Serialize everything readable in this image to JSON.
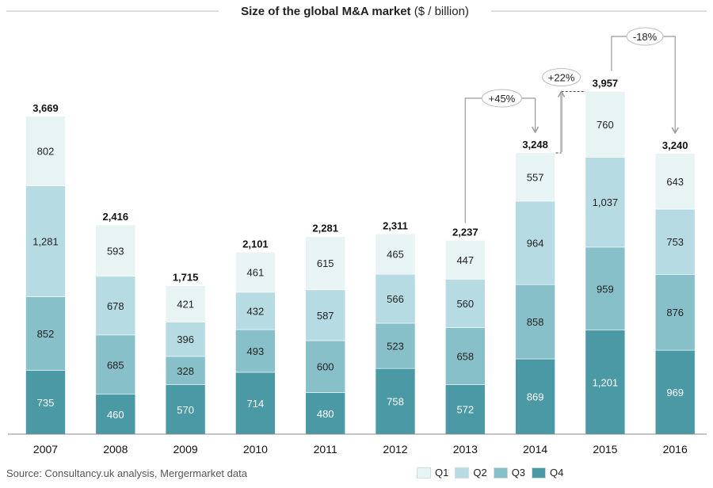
{
  "chart_data": {
    "type": "bar",
    "stacked": true,
    "title_main": "Size of the global M&A market",
    "title_unit": " ($ / billion)",
    "categories": [
      "2007",
      "2008",
      "2009",
      "2010",
      "2011",
      "2012",
      "2013",
      "2014",
      "2015",
      "2016"
    ],
    "series": [
      {
        "name": "Q4",
        "color": "#4a99a5",
        "text_color": "#ffffff",
        "values": [
          735,
          460,
          570,
          714,
          480,
          758,
          572,
          869,
          1201,
          969
        ]
      },
      {
        "name": "Q3",
        "color": "#88c0ca",
        "text_color": "#222222",
        "values": [
          852,
          685,
          328,
          493,
          600,
          523,
          658,
          858,
          959,
          876
        ]
      },
      {
        "name": "Q2",
        "color": "#b7dbe2",
        "text_color": "#222222",
        "values": [
          1281,
          678,
          396,
          432,
          587,
          566,
          560,
          964,
          1037,
          753
        ]
      },
      {
        "name": "Q1",
        "color": "#e8f3f4",
        "text_color": "#222222",
        "values": [
          802,
          593,
          421,
          461,
          615,
          465,
          447,
          557,
          760,
          643
        ]
      }
    ],
    "series_labels": [
      [
        "735",
        "460",
        "570",
        "714",
        "480",
        "758",
        "572",
        "869",
        "1,201",
        "969"
      ],
      [
        "852",
        "685",
        "328",
        "493",
        "600",
        "523",
        "658",
        "858",
        "959",
        "876"
      ],
      [
        "1,281",
        "678",
        "396",
        "432",
        "587",
        "566",
        "560",
        "964",
        "1,037",
        "753"
      ],
      [
        "802",
        "593",
        "421",
        "461",
        "615",
        "465",
        "447",
        "557",
        "760",
        "643"
      ]
    ],
    "totals": [
      "3,669",
      "2,416",
      "1,715",
      "2,101",
      "2,281",
      "2,311",
      "2,237",
      "3,248",
      "3,957",
      "3,240"
    ],
    "total_values": [
      3669,
      2416,
      1715,
      2101,
      2281,
      2311,
      2237,
      3248,
      3957,
      3240
    ],
    "ylim": [
      0,
      4300
    ],
    "legend_position": "bottom-right",
    "annotations": [
      {
        "text": "+45%",
        "from": "2013",
        "to": "2014"
      },
      {
        "text": "+22%",
        "from": "2014",
        "to": "2015"
      },
      {
        "text": "-18%",
        "from": "2015",
        "to": "2016"
      }
    ]
  },
  "legend": [
    {
      "name": "Q1",
      "color": "#e8f3f4"
    },
    {
      "name": "Q2",
      "color": "#b7dbe2"
    },
    {
      "name": "Q3",
      "color": "#88c0ca"
    },
    {
      "name": "Q4",
      "color": "#4a99a5"
    }
  ],
  "source_text": "Source: Consultancy.uk analysis, Mergermarket data"
}
